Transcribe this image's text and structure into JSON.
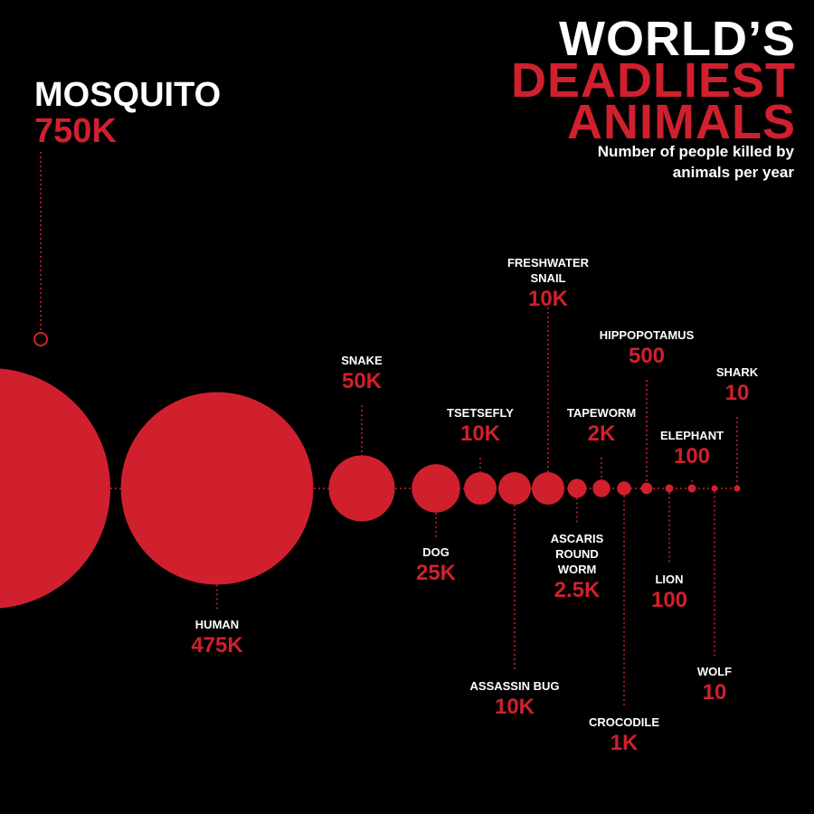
{
  "chart_data": {
    "type": "bubble",
    "title_lines": [
      "WORLD’S",
      "DEADLIEST",
      "ANIMALS"
    ],
    "subtitle": "Number of people killed by animals per year",
    "categories": [
      "MOSQUITO",
      "HUMAN",
      "SNAKE",
      "DOG",
      "TSETSEFLY",
      "ASSASSIN BUG",
      "FRESHWATER SNAIL",
      "ASCARIS ROUND WORM",
      "TAPEWORM",
      "CROCODILE",
      "HIPPOPOTAMUS",
      "LION",
      "ELEPHANT",
      "WOLF",
      "SHARK"
    ],
    "values": [
      750000,
      475000,
      50000,
      25000,
      10000,
      10000,
      10000,
      2500,
      2000,
      1000,
      500,
      100,
      100,
      10,
      10
    ],
    "value_labels": [
      "750K",
      "475K",
      "50K",
      "25K",
      "10K",
      "10K",
      "10K",
      "2.5K",
      "2K",
      "1K",
      "500",
      "100",
      "100",
      "10",
      "10"
    ],
    "color": "#d0202e"
  }
}
